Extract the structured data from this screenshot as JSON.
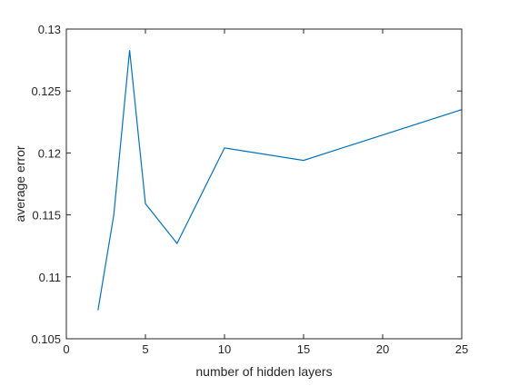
{
  "chart_data": {
    "type": "line",
    "title": "",
    "xlabel": "number of hidden layers",
    "ylabel": "average error",
    "xlim": [
      0,
      25
    ],
    "ylim": [
      0.105,
      0.13
    ],
    "xticks": [
      "0",
      "5",
      "10",
      "15",
      "20",
      "25"
    ],
    "yticks": [
      "0.105",
      "0.11",
      "0.115",
      "0.12",
      "0.125",
      "0.13"
    ],
    "grid": false,
    "legend": "none",
    "series": [
      {
        "color": "#0072bd",
        "x": [
          2,
          3,
          4,
          5,
          7,
          10,
          15,
          25
        ],
        "y": [
          0.1073,
          0.115,
          0.1283,
          0.1159,
          0.1127,
          0.1204,
          0.1194,
          0.1235
        ]
      }
    ]
  }
}
